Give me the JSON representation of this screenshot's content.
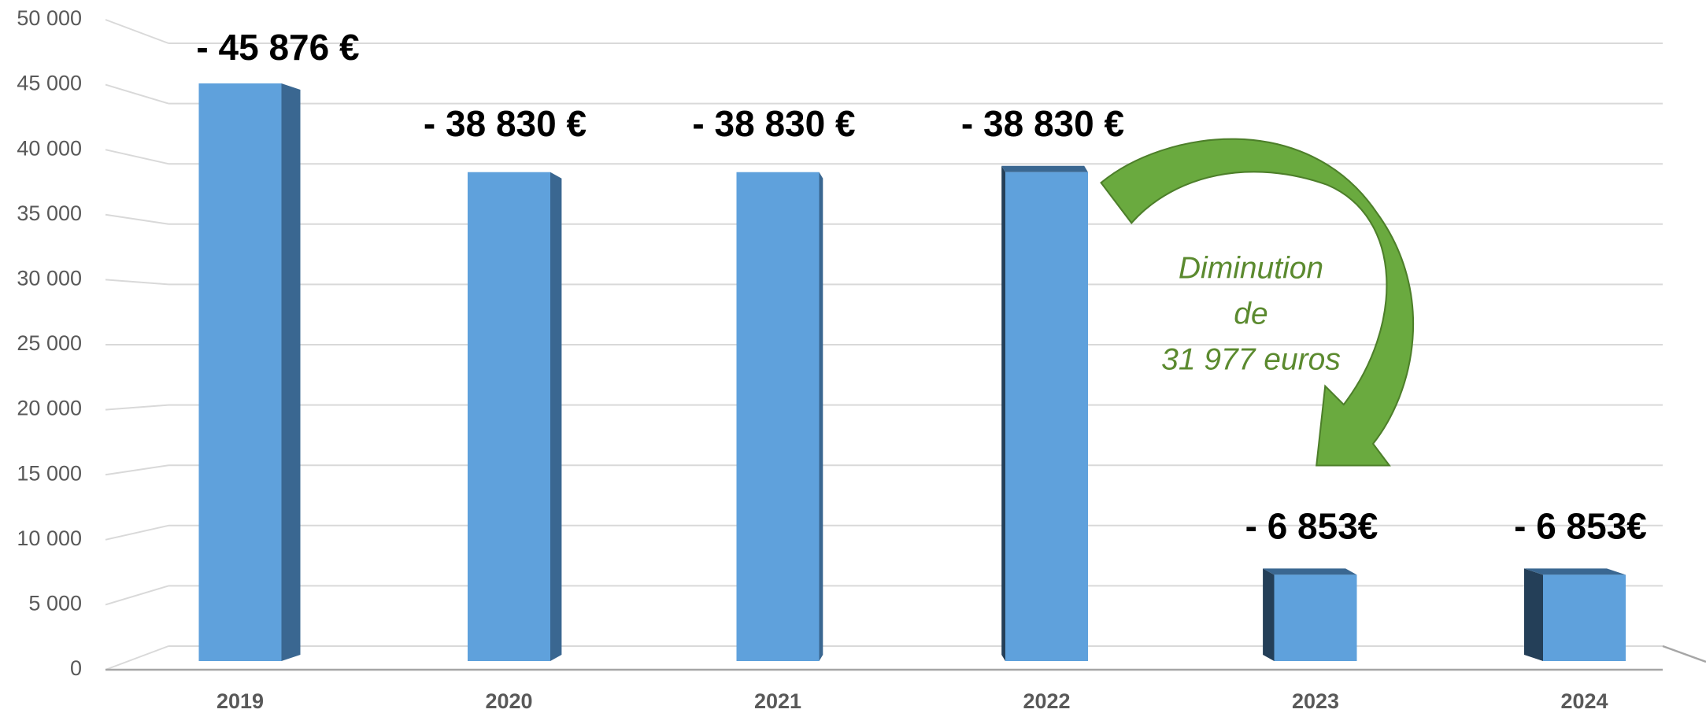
{
  "chart_data": {
    "type": "bar3d",
    "categories": [
      "2019",
      "2020",
      "2021",
      "2022",
      "2023",
      "2024"
    ],
    "values": [
      45876,
      38830,
      38830,
      38830,
      6853,
      6853
    ],
    "value_labels": [
      "- 45  876 €",
      "- 38  830 €",
      "- 38  830 €",
      "- 38  830 €",
      "- 6 853€",
      "- 6 853€"
    ],
    "color": "#5fa1dc",
    "side_color": "#3a6791",
    "ylim": [
      0,
      50000
    ],
    "yticks": [
      0,
      {
        "value": 5000,
        "label": "5 000"
      },
      {
        "value": 10000,
        "label": "10 000"
      },
      {
        "value": 15000,
        "label": "15 000"
      },
      {
        "value": 20000,
        "label": "20 000"
      },
      {
        "value": 25000,
        "label": "25 000"
      },
      {
        "value": 30000,
        "label": "30 000"
      },
      {
        "value": 35000,
        "label": "35 000"
      },
      {
        "value": 40000,
        "label": "40 000"
      },
      {
        "value": 45000,
        "label": "45 000"
      },
      {
        "value": 50000,
        "label": "50 000"
      }
    ],
    "grid": true,
    "annotation": [
      "Diminution",
      "de",
      "31 977 euros"
    ]
  }
}
